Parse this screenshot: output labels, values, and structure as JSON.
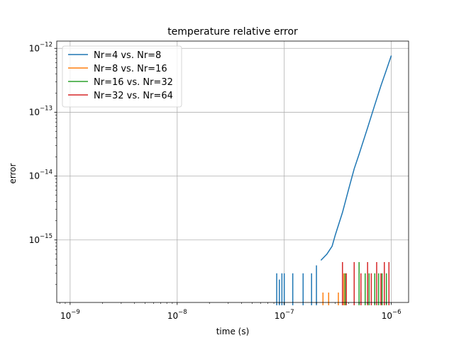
{
  "chart_data": {
    "type": "line",
    "title": "temperature relative error",
    "xlabel": "time (s)",
    "ylabel": "error",
    "xscale": "log",
    "yscale": "log",
    "xlim": [
      7.5e-10,
      1.45e-06
    ],
    "ylim": [
      1.05e-16,
      1.3e-12
    ],
    "grid": true,
    "legend_position": "top-left",
    "x_ticks": [
      {
        "base": "10",
        "exp": "−9",
        "value": 1e-09
      },
      {
        "base": "10",
        "exp": "−8",
        "value": 1e-08
      },
      {
        "base": "10",
        "exp": "−7",
        "value": 1e-07
      },
      {
        "base": "10",
        "exp": "−6",
        "value": 1e-06
      }
    ],
    "y_ticks": [
      {
        "base": "10",
        "exp": "−15",
        "value": 1e-15
      },
      {
        "base": "10",
        "exp": "−14",
        "value": 1e-14
      },
      {
        "base": "10",
        "exp": "−13",
        "value": 1e-13
      },
      {
        "base": "10",
        "exp": "−12",
        "value": 1e-12
      }
    ],
    "series": [
      {
        "name": "Nr=4 vs. Nr=8",
        "color": "#1f77b4",
        "x": [
          8.5e-08,
          9e-08,
          9.5e-08,
          1e-07,
          1.2e-07,
          1.5e-07,
          1.8e-07,
          2e-07,
          2.2e-07,
          2.5e-07,
          2.8e-07,
          3e-07,
          3.5e-07,
          4e-07,
          4.5e-07,
          5e-07,
          6e-07,
          7e-07,
          8e-07,
          9e-07,
          1e-06
        ],
        "y": [
          3e-16,
          2.4e-16,
          3e-16,
          3e-16,
          3e-16,
          3e-16,
          3e-16,
          4e-16,
          4.8e-16,
          6e-16,
          8e-16,
          1.2e-15,
          2.7e-15,
          6.3e-15,
          1.3e-14,
          2.2e-14,
          5.7e-14,
          1.3e-13,
          2.6e-13,
          4.6e-13,
          7.7e-13
        ]
      },
      {
        "name": "Nr=8 vs. Nr=16",
        "color": "#ff7f0e",
        "x": [
          2.3e-07,
          2.6e-07,
          3.2e-07,
          3.6e-07,
          5.2e-07
        ],
        "y": [
          1.5e-16,
          1.5e-16,
          1.5e-16,
          3e-16,
          1.5e-16
        ]
      },
      {
        "name": "Nr=16 vs. Nr=32",
        "color": "#2ca02c",
        "x": [
          3.7e-07,
          5e-07,
          5.7e-07,
          6.2e-07,
          7e-07,
          7.6e-07,
          8.2e-07,
          9e-07
        ],
        "y": [
          3e-16,
          4.5e-16,
          3e-16,
          3e-16,
          3e-16,
          3e-16,
          3e-16,
          3e-16
        ]
      },
      {
        "name": "Nr=32 vs. Nr=64",
        "color": "#d62728",
        "x": [
          3.5e-07,
          3.8e-07,
          4.5e-07,
          5.2e-07,
          6e-07,
          6.5e-07,
          7.3e-07,
          8e-07,
          8.6e-07,
          9.5e-07
        ],
        "y": [
          4.5e-16,
          3e-16,
          4.5e-16,
          3e-16,
          4.5e-16,
          3e-16,
          4.5e-16,
          3e-16,
          4.5e-16,
          4.5e-16
        ]
      }
    ]
  }
}
